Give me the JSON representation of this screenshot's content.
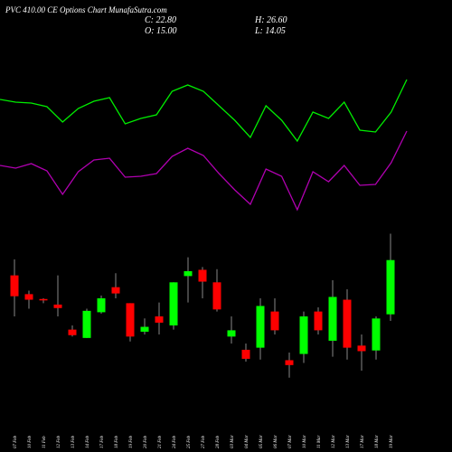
{
  "chart_data": {
    "type": "candlestick",
    "title": "PVC 410.00 CE Options Chart MunafaSutra.com",
    "ohlc_labels": {
      "close": "C: 22.80",
      "high": "H: 26.60",
      "open": "O: 15.00",
      "low": "L: 14.05"
    },
    "categories": [
      "07 Feb",
      "10 Feb",
      "11 Feb",
      "12 Feb",
      "13 Feb",
      "14 Feb",
      "17 Feb",
      "18 Feb",
      "19 Feb",
      "20 Feb",
      "21 Feb",
      "24 Feb",
      "25 Feb",
      "27 Feb",
      "28 Feb",
      "03 Mar",
      "04 Mar",
      "05 Mar",
      "06 Mar",
      "07 Mar",
      "10 Mar",
      "11 Mar",
      "12 Mar",
      "13 Mar",
      "17 Mar",
      "18 Mar",
      "19 Mar"
    ],
    "open": [
      20.6,
      17.9,
      17.2,
      16.4,
      12.8,
      11.6,
      15.3,
      18.9,
      16.6,
      12.5,
      14.7,
      13.4,
      20.5,
      21.4,
      19.6,
      11.8,
      9.9,
      10.2,
      15.4,
      8.4,
      9.3,
      15.4,
      11.2,
      17.1,
      10.5,
      9.8,
      15.0
    ],
    "high": [
      22.9,
      18.4,
      17.3,
      20.6,
      13.4,
      15.8,
      17.7,
      20.9,
      16.6,
      14.4,
      16.7,
      19.6,
      23.2,
      21.8,
      21.5,
      14.7,
      10.8,
      17.3,
      17.3,
      9.5,
      15.4,
      16.0,
      19.9,
      18.6,
      12.1,
      14.7,
      26.6
    ],
    "low": [
      14.7,
      15.8,
      16.6,
      14.7,
      11.8,
      11.6,
      15.1,
      17.3,
      11.1,
      12.1,
      12.1,
      12.8,
      16.7,
      17.3,
      15.4,
      10.8,
      8.2,
      8.5,
      12.1,
      5.9,
      8.0,
      12.1,
      8.9,
      8.5,
      6.9,
      8.5,
      14.05
    ],
    "close": [
      17.6,
      17.1,
      17.0,
      15.9,
      12.0,
      15.5,
      17.3,
      18.0,
      11.8,
      13.2,
      13.8,
      19.6,
      21.2,
      19.7,
      15.7,
      12.7,
      8.6,
      16.2,
      12.7,
      7.7,
      14.7,
      12.7,
      17.5,
      10.2,
      9.7,
      14.4,
      22.8
    ],
    "up_color": "#00ff00",
    "down_color": "#ff0000",
    "ylim": [
      4.3,
      27.7
    ],
    "series": [
      {
        "color": "#00ee00",
        "axis": "y2",
        "values": [
          19.0,
          18.7,
          18.6,
          18.2,
          16.5,
          18.0,
          18.8,
          19.2,
          16.3,
          16.9,
          17.3,
          19.9,
          20.6,
          19.9,
          18.3,
          16.7,
          14.8,
          18.3,
          16.7,
          14.4,
          17.6,
          16.9,
          18.7,
          15.6,
          15.4,
          17.6,
          21.2
        ]
      },
      {
        "color": "#b000b0",
        "axis": "y2",
        "values": [
          11.7,
          11.4,
          11.9,
          11.1,
          8.5,
          11.0,
          12.3,
          12.5,
          10.4,
          10.5,
          10.8,
          12.7,
          13.6,
          12.8,
          10.8,
          9.0,
          7.4,
          11.3,
          10.5,
          6.8,
          11.0,
          9.9,
          11.7,
          9.5,
          9.6,
          12.0,
          15.5
        ]
      }
    ],
    "y2lim": [
      6,
      22
    ]
  }
}
